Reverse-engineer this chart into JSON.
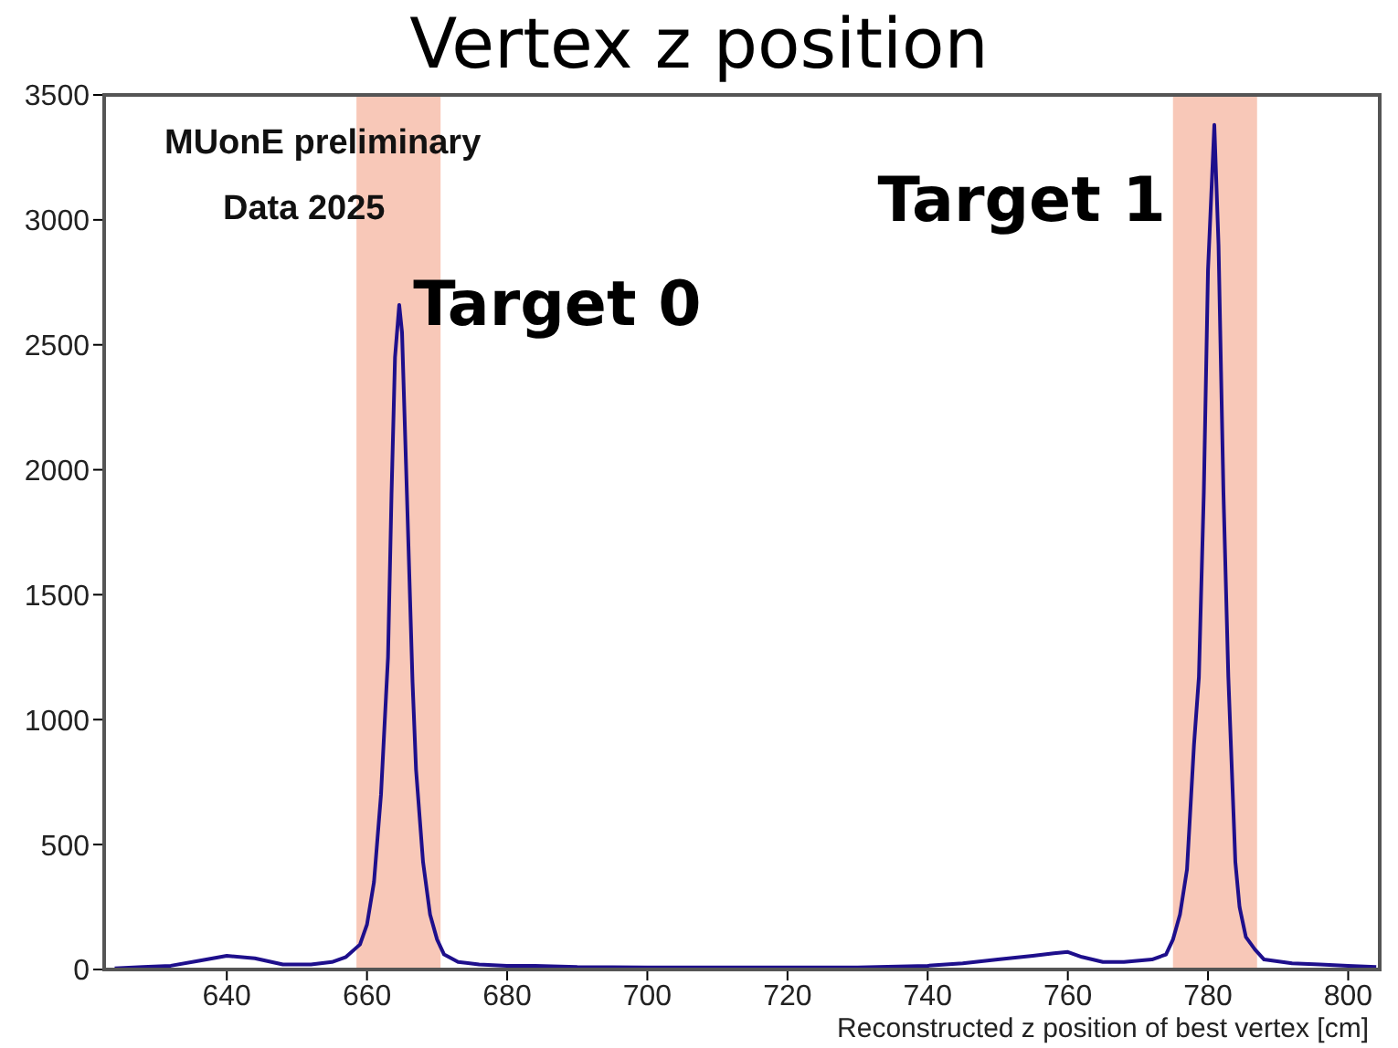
{
  "chart_data": {
    "type": "line",
    "title": "Vertex z position",
    "xlabel": "Reconstructed z position of best vertex [cm]",
    "annotations": [
      "MUonE preliminary",
      "Data 2025"
    ],
    "xlim": [
      622.5,
      804.5
    ],
    "xticks": [
      640,
      660,
      680,
      700,
      720,
      740,
      760,
      780,
      800
    ],
    "ylim": [
      0,
      3500
    ],
    "yticks": [
      0,
      500,
      1000,
      1500,
      2000,
      2500,
      3000,
      3500
    ],
    "grid": false,
    "marker": "none",
    "line_style": "solid",
    "bands": [
      {
        "axis": "x",
        "from": 658.5,
        "to": 670.5,
        "label": "Target 0",
        "color": "#f8c8b8"
      },
      {
        "axis": "x",
        "from": 775,
        "to": 787,
        "label": "Target 1",
        "color": "#f8c8b8"
      }
    ],
    "series": [
      {
        "color": "#1e0f8c",
        "x": [
          624,
          628,
          632,
          636,
          640,
          644,
          648,
          652,
          655,
          657,
          659,
          660,
          661,
          662,
          663,
          663.5,
          664,
          664.6,
          665,
          665.7,
          666.5,
          667,
          668,
          669,
          670,
          671,
          673,
          676,
          680,
          684,
          690,
          700,
          710,
          720,
          730,
          740,
          745,
          750,
          755,
          758,
          760,
          762,
          765,
          768,
          772,
          774,
          775,
          776,
          777,
          778,
          778.7,
          779.4,
          780,
          780.9,
          781.5,
          782.2,
          782.9,
          783.9,
          784.5,
          785.4,
          786.7,
          788,
          792,
          796,
          800,
          804
        ],
        "values": [
          5,
          10,
          15,
          35,
          55,
          45,
          20,
          20,
          30,
          50,
          100,
          180,
          350,
          700,
          1250,
          1900,
          2450,
          2660,
          2550,
          1900,
          1150,
          800,
          430,
          220,
          120,
          60,
          30,
          20,
          15,
          15,
          10,
          8,
          8,
          8,
          8,
          15,
          25,
          40,
          55,
          65,
          70,
          50,
          30,
          30,
          40,
          60,
          120,
          220,
          400,
          900,
          1170,
          1910,
          2800,
          3380,
          2900,
          1910,
          1170,
          430,
          250,
          130,
          80,
          40,
          25,
          20,
          15,
          10
        ]
      }
    ]
  }
}
